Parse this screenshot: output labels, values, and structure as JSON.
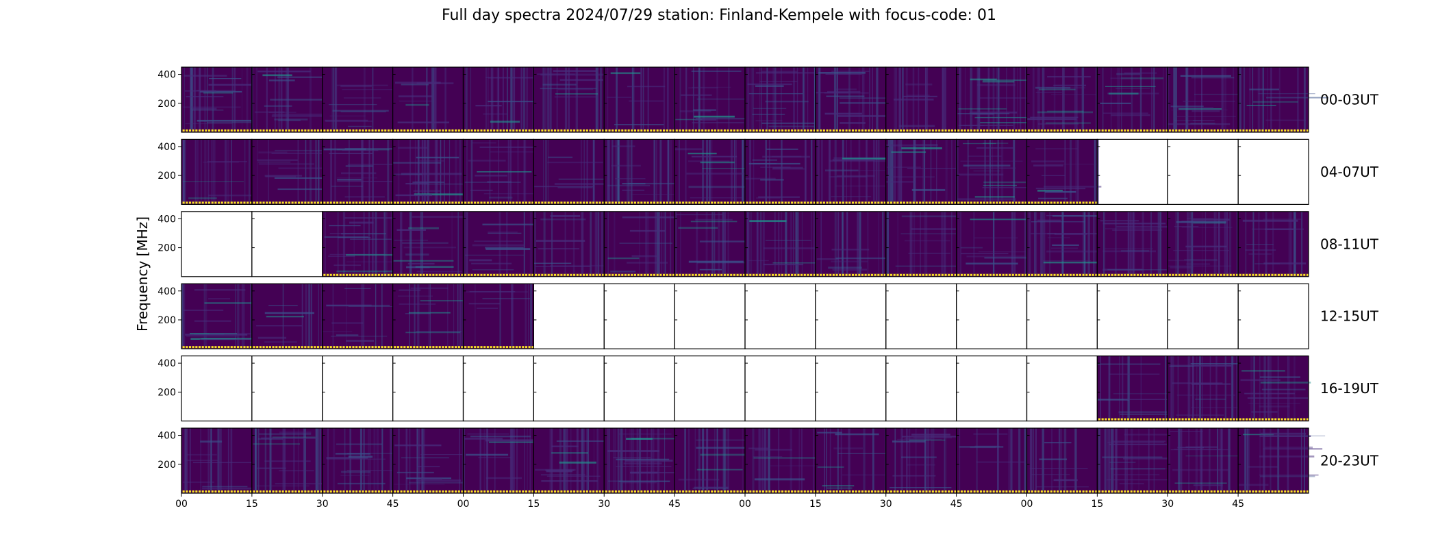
{
  "chart_data": {
    "type": "heatmap",
    "title": "Full day spectra 2024/07/29 station: Finland-Kempele with focus-code: 01",
    "ylabel": "Frequency [MHz]",
    "xlabel": "",
    "y_ticks": [
      200,
      400
    ],
    "ylim": [
      0,
      450
    ],
    "x_tick_labels": [
      "00",
      "15",
      "30",
      "45",
      "00",
      "15",
      "30",
      "45",
      "00",
      "15",
      "30",
      "45",
      "00",
      "15",
      "30",
      "45"
    ],
    "colormap": "viridis",
    "panels_per_row": 16,
    "panel_minutes": 15,
    "rows": [
      {
        "label": "00-03UT",
        "panels": [
          1,
          1,
          1,
          1,
          1,
          1,
          1,
          1,
          1,
          1,
          1,
          1,
          1,
          1,
          1,
          1
        ]
      },
      {
        "label": "04-07UT",
        "panels": [
          1,
          1,
          1,
          1,
          1,
          1,
          1,
          1,
          1,
          1,
          1,
          1,
          1,
          0,
          0,
          0
        ]
      },
      {
        "label": "08-11UT",
        "panels": [
          0,
          0,
          1,
          1,
          1,
          1,
          1,
          1,
          1,
          1,
          1,
          1,
          1,
          1,
          1,
          1
        ]
      },
      {
        "label": "12-15UT",
        "panels": [
          1,
          1,
          1,
          1,
          1,
          0,
          0,
          0,
          0,
          0,
          0,
          0,
          0,
          0,
          0,
          0
        ]
      },
      {
        "label": "16-19UT",
        "panels": [
          0,
          0,
          0,
          0,
          0,
          0,
          0,
          0,
          0,
          0,
          0,
          0,
          0,
          1,
          1,
          1
        ]
      },
      {
        "label": "20-23UT",
        "panels": [
          1,
          1,
          1,
          1,
          1,
          1,
          1,
          1,
          1,
          1,
          1,
          1,
          1,
          1,
          1,
          1
        ]
      }
    ],
    "colors": {
      "background": "#440154",
      "low": "#472d7b",
      "mid": "#3b528b",
      "high": "#21918c",
      "peak": "#5ec962",
      "max": "#fde725"
    }
  }
}
